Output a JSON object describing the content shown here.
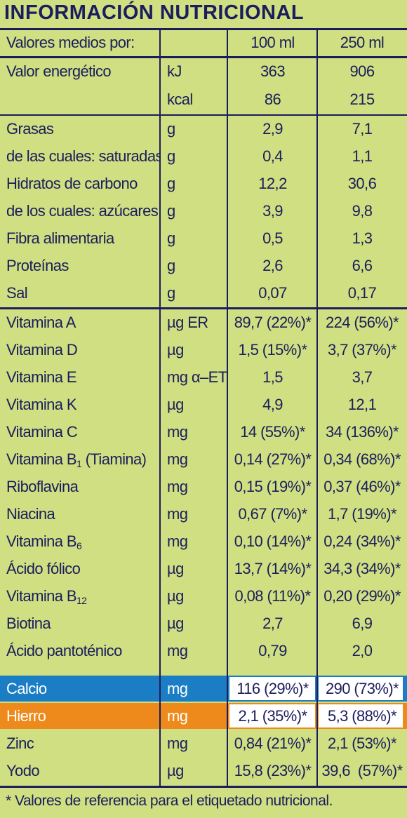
{
  "title": "INFORMACIÓN NUTRICIONAL",
  "header": {
    "label": "Valores medios por:",
    "unit": "",
    "col100": "100 ml",
    "col250": "250 ml"
  },
  "rows": [
    {
      "name": "Valor energético",
      "unit": "kJ",
      "v100": "363",
      "v250": "906"
    },
    {
      "name": "",
      "unit": "kcal",
      "v100": "86",
      "v250": "215"
    },
    {
      "name": "Grasas",
      "unit": "g",
      "v100": "2,9",
      "v250": "7,1"
    },
    {
      "name": "de las cuales: saturadas",
      "unit": "g",
      "v100": "0,4",
      "v250": "1,1"
    },
    {
      "name": "Hidratos de carbono",
      "unit": "g",
      "v100": "12,2",
      "v250": "30,6"
    },
    {
      "name": "de los cuales: azúcares",
      "unit": "g",
      "v100": "3,9",
      "v250": "9,8"
    },
    {
      "name": "Fibra alimentaria",
      "unit": "g",
      "v100": "0,5",
      "v250": "1,3"
    },
    {
      "name": "Proteínas",
      "unit": "g",
      "v100": "2,6",
      "v250": "6,6"
    },
    {
      "name": "Sal",
      "unit": "g",
      "v100": "0,07",
      "v250": "0,17"
    },
    {
      "name": "Vitamina A",
      "unit": "µg ER",
      "v100": "89,7 (22%)*",
      "v250": "224 (56%)*"
    },
    {
      "name": "Vitamina D",
      "unit": "µg",
      "v100": "1,5 (15%)*",
      "v250": "3,7 (37%)*"
    },
    {
      "name": "Vitamina E",
      "unit": "mg α–ET",
      "v100": "1,5",
      "v250": "3,7"
    },
    {
      "name": "Vitamina K",
      "unit": "µg",
      "v100": "4,9",
      "v250": "12,1"
    },
    {
      "name": "Vitamina C",
      "unit": "mg",
      "v100": "14 (55%)*",
      "v250": "34 (136%)*"
    },
    {
      "name": "Vitamina B",
      "sub": "1",
      "suffix": " (Tiamina)",
      "unit": "mg",
      "v100": "0,14 (27%)*",
      "v250": "0,34 (68%)*"
    },
    {
      "name": "Riboflavina",
      "unit": "mg",
      "v100": "0,15 (19%)*",
      "v250": "0,37 (46%)*"
    },
    {
      "name": "Niacina",
      "unit": "mg",
      "v100": "0,67 (7%)*",
      "v250": "1,7 (19%)*"
    },
    {
      "name": "Vitamina B",
      "sub": "6",
      "suffix": "",
      "unit": "mg",
      "v100": "0,10 (14%)*",
      "v250": "0,24 (34%)*"
    },
    {
      "name": "Ácido fólico",
      "unit": "µg",
      "v100": "13,7 (14%)*",
      "v250": "34,3 (34%)*"
    },
    {
      "name": "Vitamina B",
      "sub": "12",
      "suffix": "",
      "unit": "µg",
      "v100": "0,08 (11%)*",
      "v250": "0,20 (29%)*"
    },
    {
      "name": "Biotina",
      "unit": "µg",
      "v100": "2,7",
      "v250": "6,9"
    },
    {
      "name": "Ácido pantoténico",
      "unit": "mg",
      "v100": "0,79",
      "v250": "2,0"
    },
    {
      "name": "Calcio",
      "unit": "mg",
      "v100": "116 (29%)*",
      "v250": "290 (73%)*"
    },
    {
      "name": "Hierro",
      "unit": "mg",
      "v100": "2,1 (35%)*",
      "v250": "5,3 (88%)*"
    },
    {
      "name": "Zinc",
      "unit": "mg",
      "v100": "0,84 (21%)*",
      "v250": "2,1 (53%)*"
    },
    {
      "name": "Yodo",
      "unit": "µg",
      "v100": "15,8 (23%)*",
      "v250": "39,6  (57%)*"
    }
  ],
  "footnote": "* Valores de referencia para el etiquetado nutricional.",
  "colors": {
    "background": "#cfdf82",
    "text": "#1b1d5c",
    "calcio_band": "#1b7ec4",
    "hierro_band": "#ee8a1c"
  }
}
